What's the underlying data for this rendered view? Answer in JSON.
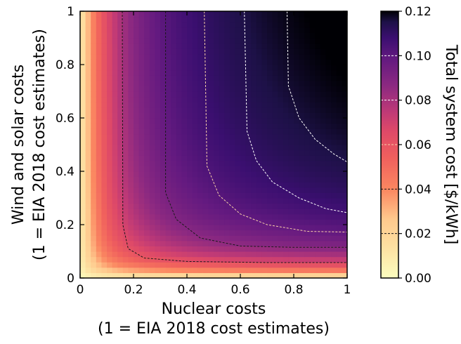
{
  "chart_data": {
    "type": "heatmap",
    "title": "",
    "xlabel": "Nuclear costs",
    "xlabel_sub": "(1 = EIA 2018 cost estimates)",
    "ylabel": "Wind and solar costs",
    "ylabel_sub": "(1 = EIA 2018 cost estimates)",
    "xlim": [
      0,
      1
    ],
    "ylim": [
      0,
      1
    ],
    "x_ticks": [
      "0",
      "0.2",
      "0.4",
      "0.6",
      "0.8",
      "1"
    ],
    "x_tick_values": [
      0,
      0.2,
      0.4,
      0.6,
      0.8,
      1
    ],
    "y_ticks": [
      "0",
      "0.2",
      "0.4",
      "0.6",
      "0.8",
      "1"
    ],
    "y_tick_values": [
      0,
      0.2,
      0.4,
      0.6,
      0.8,
      1
    ],
    "colorbar": {
      "label": "Total system cost [$/kWh]",
      "colormap": "magma_r",
      "range": [
        0,
        0.12
      ],
      "ticks": [
        "0.00",
        "0.02",
        "0.04",
        "0.06",
        "0.08",
        "0.10",
        "0.12"
      ],
      "tick_values": [
        0,
        0.02,
        0.04,
        0.06,
        0.08,
        0.1,
        0.12
      ]
    },
    "contour_levels": [
      0.02,
      0.04,
      0.06,
      0.08,
      0.1
    ],
    "corner_values": {
      "x0_y0": 0.0,
      "x1_y0": 0.02,
      "x0_y1": 0.02,
      "x1_y1": 0.12
    },
    "contour_lines": [
      {
        "level": 0.02,
        "color": "#1a1a1a",
        "points": [
          [
            0.158,
            1.0
          ],
          [
            0.16,
            0.2
          ],
          [
            0.18,
            0.11
          ],
          [
            0.24,
            0.075
          ],
          [
            0.4,
            0.062
          ],
          [
            0.7,
            0.058
          ],
          [
            1.0,
            0.058
          ]
        ]
      },
      {
        "level": 0.04,
        "color": "#1a1a1a",
        "points": [
          [
            0.32,
            1.0
          ],
          [
            0.32,
            0.32
          ],
          [
            0.36,
            0.22
          ],
          [
            0.45,
            0.15
          ],
          [
            0.6,
            0.12
          ],
          [
            0.8,
            0.115
          ],
          [
            1.0,
            0.115
          ]
        ]
      },
      {
        "level": 0.06,
        "color": "#f8cfa8",
        "points": [
          [
            0.465,
            1.0
          ],
          [
            0.475,
            0.42
          ],
          [
            0.52,
            0.31
          ],
          [
            0.6,
            0.24
          ],
          [
            0.7,
            0.2
          ],
          [
            0.85,
            0.175
          ],
          [
            1.0,
            0.172
          ]
        ]
      },
      {
        "level": 0.08,
        "color": "#ffffff",
        "points": [
          [
            0.615,
            1.0
          ],
          [
            0.625,
            0.55
          ],
          [
            0.66,
            0.44
          ],
          [
            0.72,
            0.36
          ],
          [
            0.82,
            0.3
          ],
          [
            0.92,
            0.26
          ],
          [
            1.0,
            0.245
          ]
        ]
      },
      {
        "level": 0.1,
        "color": "#ffffff",
        "points": [
          [
            0.775,
            1.0
          ],
          [
            0.78,
            0.72
          ],
          [
            0.82,
            0.6
          ],
          [
            0.88,
            0.52
          ],
          [
            0.95,
            0.465
          ],
          [
            1.0,
            0.435
          ]
        ]
      }
    ],
    "grid": false,
    "legend": "none"
  }
}
